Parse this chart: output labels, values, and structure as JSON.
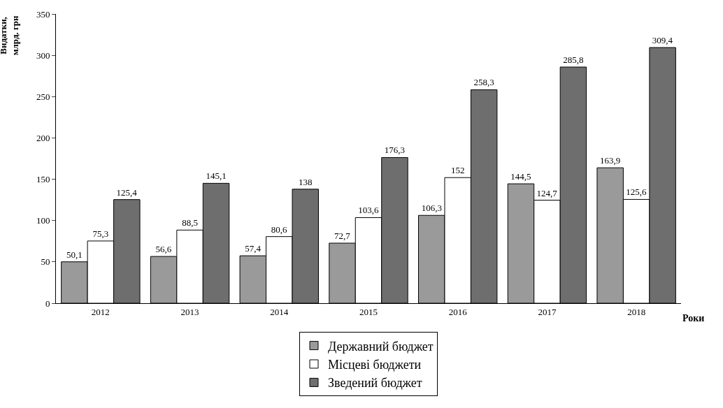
{
  "chart_data": {
    "type": "bar",
    "ylabel": "Видатки,\nмлрд. грн",
    "xlabel": "Роки",
    "categories": [
      "2012",
      "2013",
      "2014",
      "2015",
      "2016",
      "2017",
      "2018"
    ],
    "series": [
      {
        "name": "Державний бюджет",
        "color": "#9a9a9a",
        "values": [
          50.1,
          56.6,
          57.4,
          72.7,
          106.3,
          144.5,
          163.9
        ],
        "value_labels": [
          "50,1",
          "56,6",
          "57,4",
          "72,7",
          "106,3",
          "144,5",
          "163,9"
        ]
      },
      {
        "name": "Місцеві бюджети",
        "color": "#ffffff",
        "values": [
          75.3,
          88.5,
          80.6,
          103.6,
          152,
          124.7,
          125.6
        ],
        "value_labels": [
          "75,3",
          "88,5",
          "80,6",
          "103,6",
          "152",
          "124,7",
          "125,6"
        ]
      },
      {
        "name": "Зведений бюджет",
        "color": "#6e6e6e",
        "values": [
          125.4,
          145.1,
          138,
          176.3,
          258.3,
          285.8,
          309.4
        ],
        "value_labels": [
          "125,4",
          "145,1",
          "138",
          "176,3",
          "258,3",
          "285,8",
          "309,4"
        ]
      }
    ],
    "ylim": [
      0,
      350
    ],
    "yticks": [
      0,
      50,
      100,
      150,
      200,
      250,
      300,
      350
    ],
    "grid": false,
    "legend": "bottom"
  }
}
